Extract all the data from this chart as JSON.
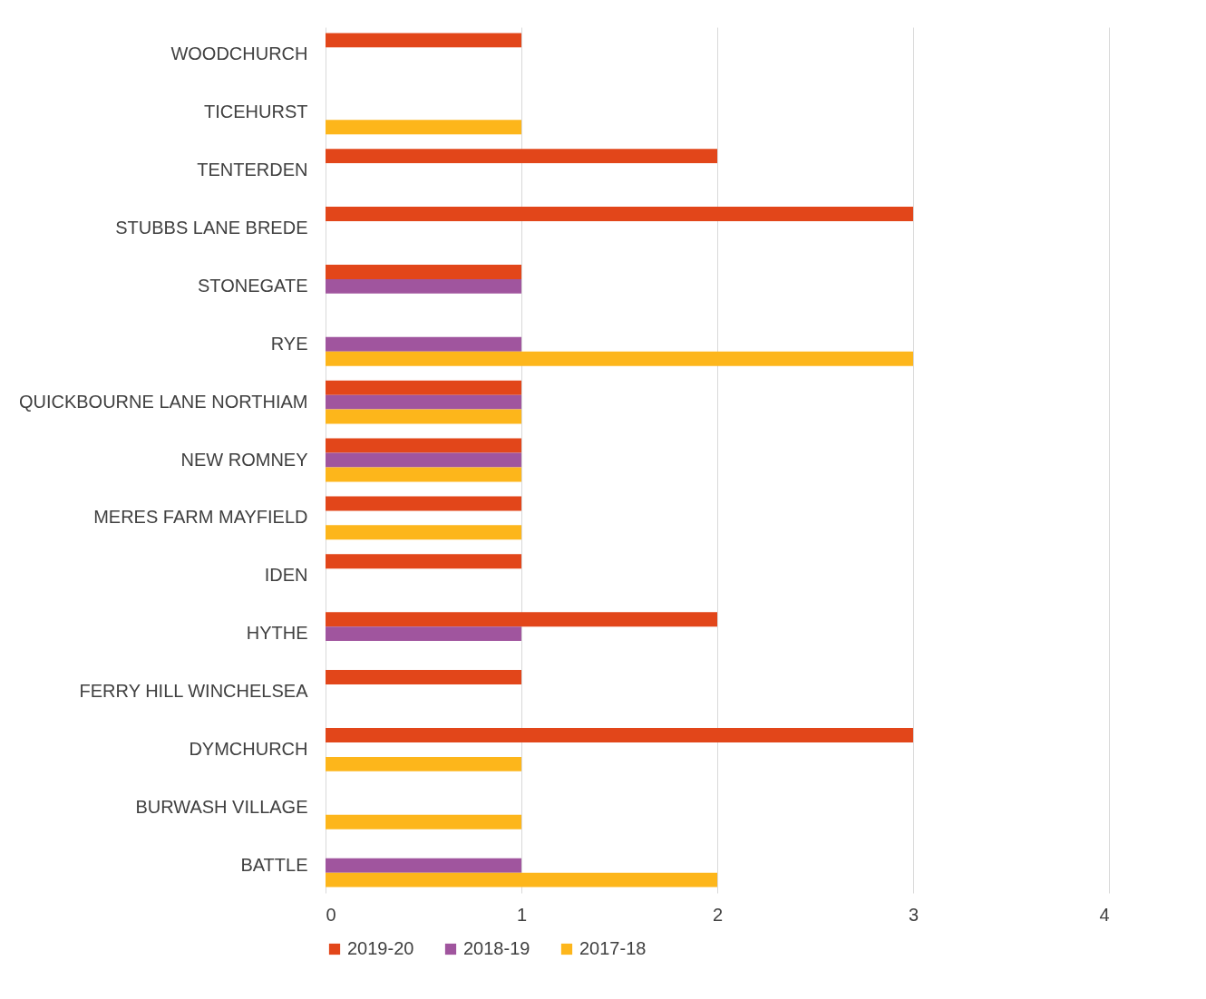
{
  "chart_data": {
    "type": "bar",
    "orientation": "horizontal",
    "categories": [
      "WOODCHURCH",
      "TICEHURST",
      "TENTERDEN",
      "STUBBS LANE BREDE",
      "STONEGATE",
      "RYE",
      "QUICKBOURNE LANE NORTHIAM",
      "NEW ROMNEY",
      "MERES FARM MAYFIELD",
      "IDEN",
      "HYTHE",
      "FERRY HILL WINCHELSEA",
      "DYMCHURCH",
      "BURWASH VILLAGE",
      "BATTLE"
    ],
    "series": [
      {
        "name": "2019-20",
        "color": "#e2461a",
        "values": [
          1,
          null,
          2,
          3,
          1,
          null,
          1,
          1,
          1,
          1,
          2,
          1,
          3,
          null,
          null
        ]
      },
      {
        "name": "2018-19",
        "color": "#a0559e",
        "values": [
          null,
          null,
          null,
          null,
          1,
          1,
          1,
          1,
          null,
          null,
          1,
          null,
          null,
          null,
          1
        ]
      },
      {
        "name": "2017-18",
        "color": "#fdb61b",
        "values": [
          null,
          1,
          null,
          null,
          null,
          3,
          1,
          1,
          1,
          null,
          null,
          null,
          1,
          1,
          2
        ]
      }
    ],
    "xlim": [
      0,
      4
    ],
    "xticks": [
      0,
      1,
      2,
      3,
      4
    ],
    "grid": "x",
    "legend": "bottom"
  }
}
